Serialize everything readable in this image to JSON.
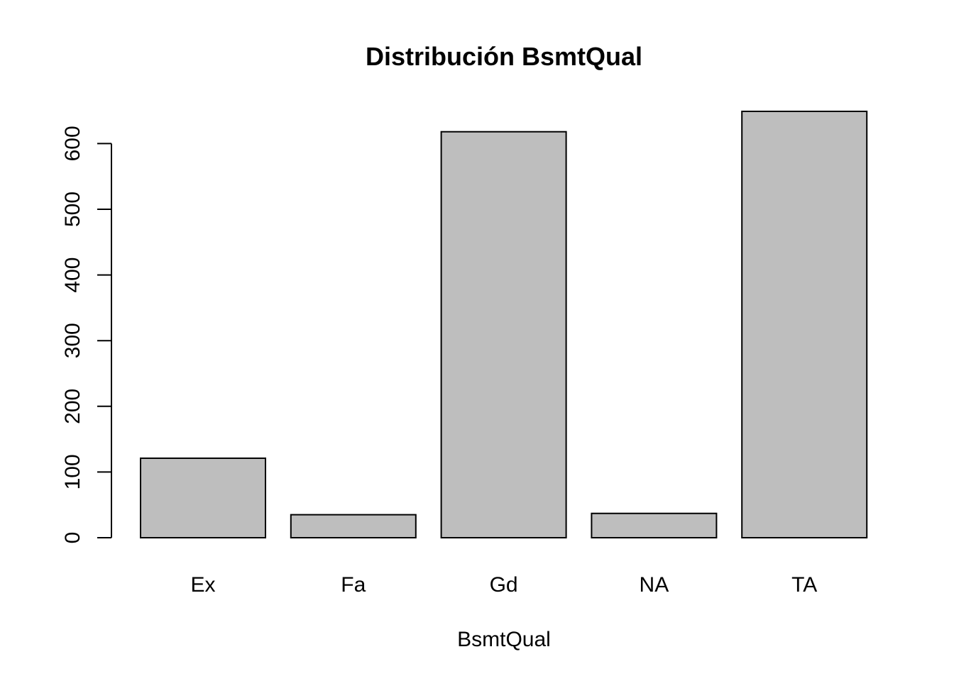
{
  "chart_data": {
    "type": "bar",
    "title": "Distribución BsmtQual",
    "xlabel": "BsmtQual",
    "ylabel": "",
    "categories": [
      "Ex",
      "Fa",
      "Gd",
      "NA",
      "TA"
    ],
    "values": [
      121,
      35,
      618,
      37,
      649
    ],
    "ylim": [
      0,
      649
    ],
    "yticks": [
      0,
      100,
      200,
      300,
      400,
      500,
      600
    ],
    "grid": false,
    "bar_color": "#bebebe",
    "border_color": "#000000"
  }
}
